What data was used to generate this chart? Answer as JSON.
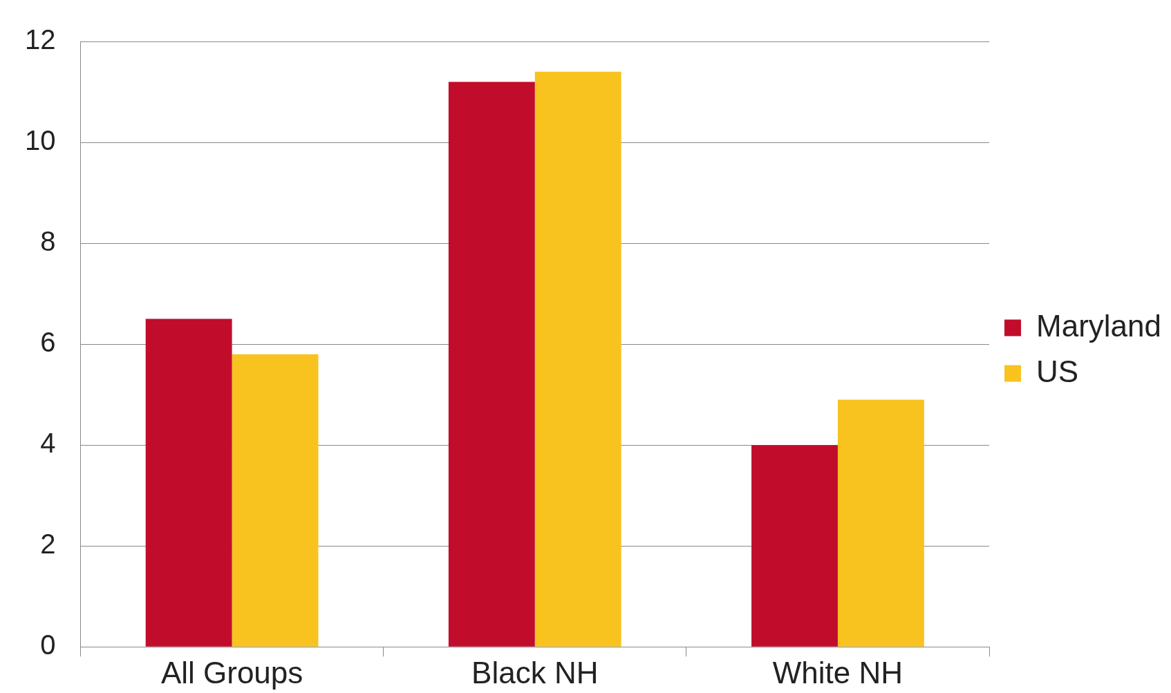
{
  "chart_data": {
    "type": "bar",
    "categories": [
      "All Groups",
      "Black NH",
      "White NH"
    ],
    "series": [
      {
        "name": "Maryland",
        "color": "#c10c2b",
        "values": [
          6.5,
          11.2,
          4.0
        ]
      },
      {
        "name": "US",
        "color": "#f8c31f",
        "values": [
          5.8,
          11.4,
          4.9
        ]
      }
    ],
    "ylim": [
      0,
      12
    ],
    "yticks": [
      0,
      2,
      4,
      6,
      8,
      10,
      12
    ],
    "grid": "y",
    "legend": "right"
  }
}
